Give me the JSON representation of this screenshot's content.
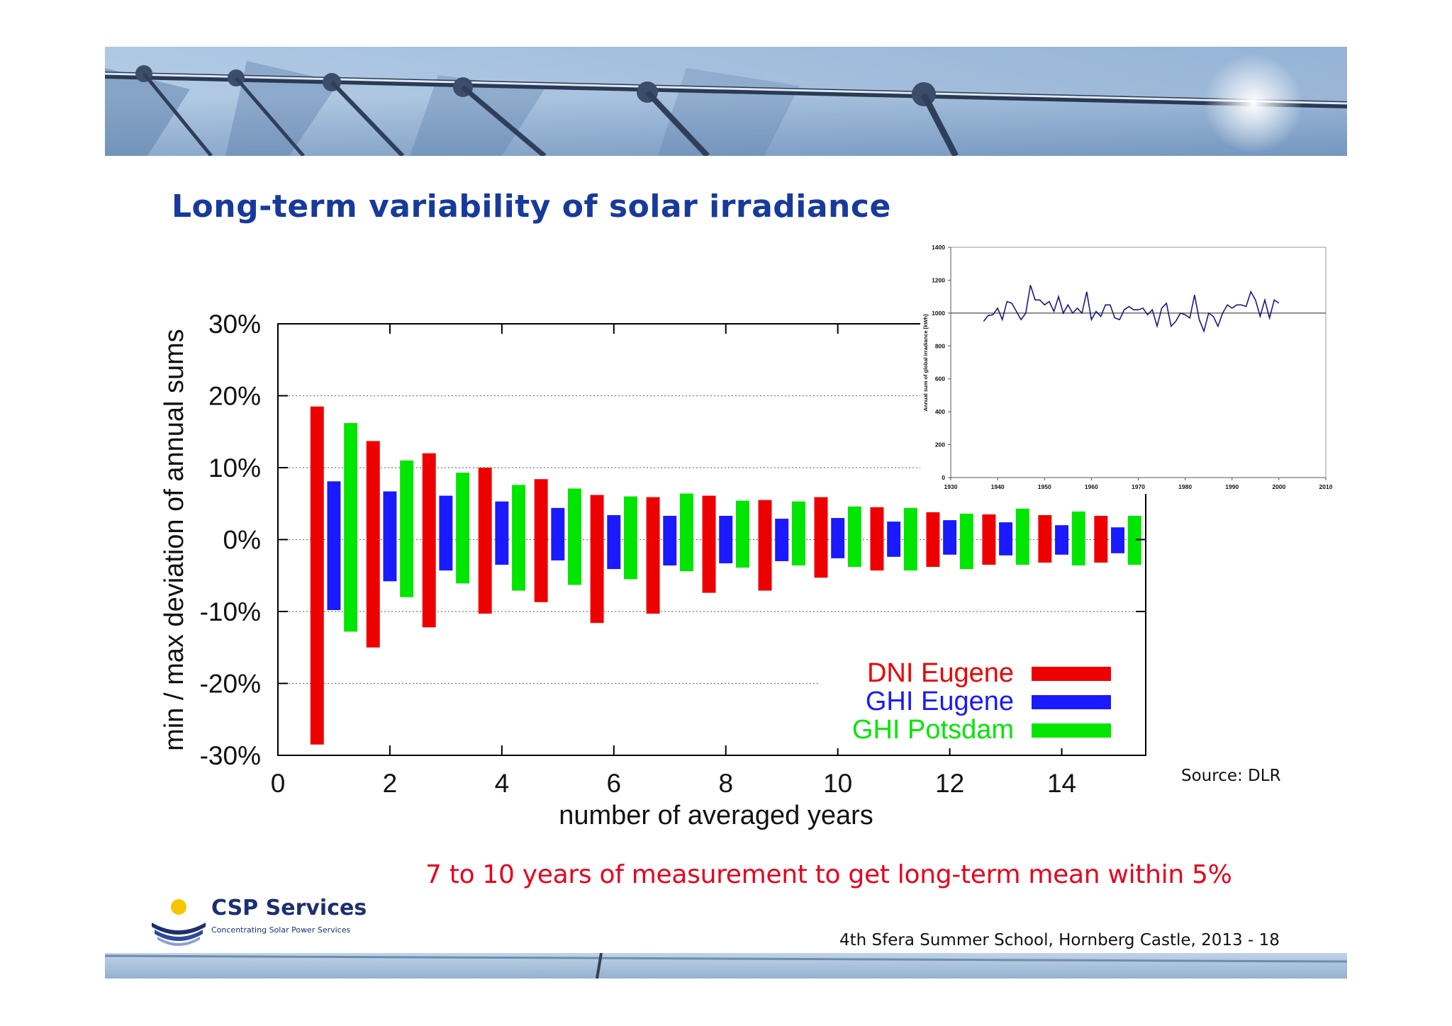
{
  "slide": {
    "title": "Long-term variability of solar irradiance",
    "source": "Source: DLR",
    "conclusion": "7 to 10 years of measurement to get long-term mean within 5%",
    "footer": "4th Sfera Summer School, Hornberg Castle, 2013   - 18",
    "logo": {
      "name": "CSP Services",
      "tagline": "Concentrating Solar Power Services"
    }
  },
  "colors": {
    "title": "#173a9b",
    "conclusion": "#e8001c",
    "dni_eugene": "#ee0000",
    "ghi_eugene": "#1a1aff",
    "ghi_potsdam": "#00e600"
  },
  "chart_data": [
    {
      "type": "bar",
      "title": "",
      "xlabel": "number of averaged years",
      "ylabel": "min / max deviation of annual sums",
      "xlim": [
        0,
        15.5
      ],
      "ylim": [
        -30,
        30
      ],
      "xticks": [
        0,
        2,
        4,
        6,
        8,
        10,
        12,
        14
      ],
      "yticks": [
        -30,
        -20,
        -10,
        0,
        10,
        20,
        30
      ],
      "ytick_labels": [
        "-30%",
        "-20%",
        "-10%",
        "0%",
        "10%",
        "20%",
        "30%"
      ],
      "grid": "horizontal dotted",
      "legend_position": "bottom-right",
      "categories": [
        1,
        2,
        3,
        4,
        5,
        6,
        7,
        8,
        9,
        10,
        11,
        12,
        13,
        14,
        15
      ],
      "series": [
        {
          "name": "DNI Eugene",
          "color": "#ee0000",
          "min": [
            -28.5,
            -15,
            -12.2,
            -10.3,
            -8.7,
            -11.6,
            -10.3,
            -7.4,
            -7.1,
            -5.3,
            -4.3,
            -3.8,
            -3.5,
            -3.2,
            -3.2
          ],
          "max": [
            18.5,
            13.7,
            12,
            10,
            8.4,
            6.2,
            5.9,
            6.1,
            5.5,
            5.9,
            4.5,
            3.8,
            3.5,
            3.4,
            3.3
          ]
        },
        {
          "name": "GHI Eugene",
          "color": "#1a1aff",
          "min": [
            -9.8,
            -5.8,
            -4.3,
            -3.5,
            -2.9,
            -4.1,
            -3.6,
            -3.3,
            -3,
            -2.6,
            -2.4,
            -2.1,
            -2.2,
            -2.1,
            -1.9
          ],
          "max": [
            8.1,
            6.7,
            6.1,
            5.3,
            4.4,
            3.4,
            3.3,
            3.3,
            2.9,
            3,
            2.5,
            2.7,
            2.4,
            2,
            1.7
          ]
        },
        {
          "name": "GHI Potsdam",
          "color": "#00e600",
          "min": [
            -12.8,
            -8,
            -6.1,
            -7.1,
            -6.3,
            -5.5,
            -4.4,
            -3.9,
            -3.6,
            -3.8,
            -4.3,
            -4.1,
            -3.5,
            -3.6,
            -3.5
          ],
          "max": [
            16.2,
            11,
            9.3,
            7.6,
            7.1,
            6,
            6.4,
            5.4,
            5.3,
            4.6,
            4.4,
            3.6,
            4.3,
            3.9,
            3.3
          ]
        }
      ]
    },
    {
      "type": "line",
      "title": "",
      "xlabel": "",
      "ylabel": "Annual sum of global irradiance [kWh]",
      "xlim": [
        1930,
        2010
      ],
      "ylim": [
        0,
        1400
      ],
      "xticks": [
        1930,
        1940,
        1950,
        1960,
        1970,
        1980,
        1990,
        2000,
        2010
      ],
      "yticks": [
        0,
        200,
        400,
        600,
        800,
        1000,
        1200,
        1400
      ],
      "reference_line": 1000,
      "line_color": "#1a1a80",
      "x": [
        1937,
        1938,
        1939,
        1940,
        1941,
        1942,
        1943,
        1944,
        1945,
        1946,
        1947,
        1948,
        1949,
        1950,
        1951,
        1952,
        1953,
        1954,
        1955,
        1956,
        1957,
        1958,
        1959,
        1960,
        1961,
        1962,
        1963,
        1964,
        1965,
        1966,
        1967,
        1968,
        1969,
        1970,
        1971,
        1972,
        1973,
        1974,
        1975,
        1976,
        1977,
        1978,
        1979,
        1980,
        1981,
        1982,
        1983,
        1984,
        1985,
        1986,
        1987,
        1988,
        1989,
        1990,
        1991,
        1992,
        1993,
        1994,
        1995,
        1996,
        1997,
        1998,
        1999,
        2000
      ],
      "y": [
        950,
        985,
        990,
        1030,
        960,
        1070,
        1060,
        1010,
        960,
        1000,
        1170,
        1080,
        1080,
        1050,
        1070,
        1010,
        1100,
        1000,
        1050,
        1000,
        1030,
        1000,
        1130,
        960,
        1010,
        980,
        1050,
        1050,
        970,
        960,
        1020,
        1040,
        1020,
        1020,
        1030,
        990,
        1020,
        920,
        1030,
        1060,
        920,
        950,
        1000,
        990,
        970,
        1110,
        960,
        890,
        1000,
        980,
        920,
        1000,
        1050,
        1030,
        1050,
        1050,
        1040,
        1130,
        1080,
        980,
        1080,
        970,
        1080,
        1060
      ]
    }
  ]
}
